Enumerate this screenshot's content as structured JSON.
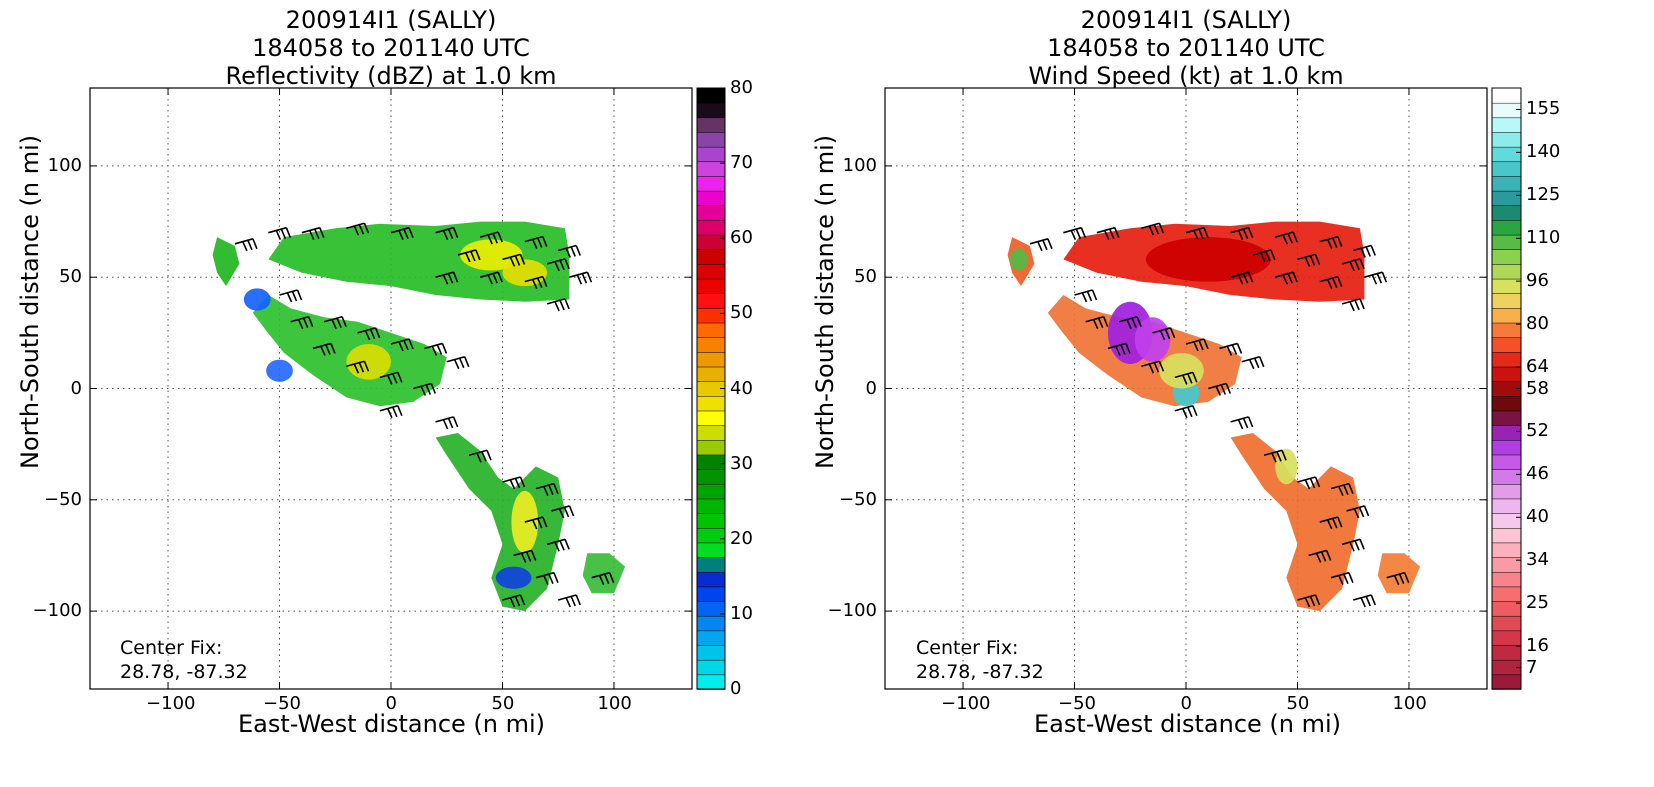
{
  "panels": [
    {
      "title_line1": "200914I1 (SALLY)",
      "title_line2": "184058 to 201140 UTC",
      "title_line3": "Reflectivity (dBZ) at 1.0 km",
      "center_fix_label": "Center Fix:",
      "center_fix_value": "28.78, -87.32"
    },
    {
      "title_line1": "200914I1 (SALLY)",
      "title_line2": "184058 to 201140 UTC",
      "title_line3": "Wind Speed (kt) at 1.0 km",
      "center_fix_label": "Center Fix:",
      "center_fix_value": "28.78, -87.32"
    }
  ],
  "chart_data": [
    {
      "type": "heatmap",
      "title": "200914I1 (SALLY) 184058 to 201140 UTC Reflectivity (dBZ) at 1.0 km",
      "xlabel": "East-West distance (n mi)",
      "ylabel": "North-South distance (n mi)",
      "xlim": [
        -135,
        135
      ],
      "ylim": [
        -135,
        135
      ],
      "xticks": [
        "−100",
        "−50",
        "0",
        "50",
        "100"
      ],
      "yticks": [
        "100",
        "50",
        "0",
        "−50",
        "−100"
      ],
      "xtick_values": [
        -100,
        -50,
        0,
        50,
        100
      ],
      "ytick_values": [
        100,
        50,
        0,
        -50,
        -100
      ],
      "grid": true,
      "colorbar_ticks": [
        "80",
        "70",
        "60",
        "50",
        "40",
        "30",
        "20",
        "10",
        "0"
      ],
      "colorbar_tick_values": [
        80,
        70,
        60,
        50,
        40,
        30,
        20,
        10,
        0
      ],
      "colorbar_range": [
        0,
        80
      ],
      "colorbar_colors": [
        "#00eeee",
        "#00d7e6",
        "#00c2ea",
        "#00a6ee",
        "#0088f0",
        "#0066f2",
        "#0044ee",
        "#0a2bd0",
        "#007f80",
        "#00dd22",
        "#00cc11",
        "#00c400",
        "#00b400",
        "#00a400",
        "#009400",
        "#008400",
        "#99cc00",
        "#ccdd00",
        "#ffff00",
        "#f0e000",
        "#e8c800",
        "#e8b000",
        "#f09800",
        "#f58200",
        "#ff6a00",
        "#ff3000",
        "#ff1010",
        "#ee0000",
        "#dd0000",
        "#cc0000",
        "#cc0033",
        "#dd0066",
        "#e6009a",
        "#f000cc",
        "#ee22ee",
        "#cc44dd",
        "#aa44cc",
        "#8844aa",
        "#663366",
        "#1a0a1a",
        "#000000"
      ]
    },
    {
      "type": "heatmap",
      "title": "200914I1 (SALLY) 184058 to 201140 UTC Wind Speed (kt) at 1.0 km",
      "xlabel": "East-West distance (n mi)",
      "ylabel": "North-South distance (n mi)",
      "xlim": [
        -135,
        135
      ],
      "ylim": [
        -135,
        135
      ],
      "xticks": [
        "−100",
        "−50",
        "0",
        "50",
        "100"
      ],
      "yticks": [
        "100",
        "50",
        "0",
        "−50",
        "−100"
      ],
      "xtick_values": [
        -100,
        -50,
        0,
        50,
        100
      ],
      "ytick_values": [
        100,
        50,
        0,
        -50,
        -100
      ],
      "grid": true,
      "colorbar_ticks": [
        "155",
        "140",
        "125",
        "110",
        "96",
        "80",
        "64",
        "58",
        "52",
        "46",
        "40",
        "34",
        "25",
        "16",
        "7"
      ],
      "colorbar_tick_fracs": [
        0.0357,
        0.1071,
        0.1786,
        0.25,
        0.3214,
        0.3929,
        0.4643,
        0.5,
        0.5714,
        0.6429,
        0.7143,
        0.7857,
        0.8571,
        0.9286,
        0.9643
      ],
      "colorbar_colors": [
        "#9b1a3a",
        "#b0243e",
        "#c02a40",
        "#d4364a",
        "#e04a52",
        "#ec5c60",
        "#f56e70",
        "#f7848a",
        "#f99aa4",
        "#fbb0bc",
        "#fcc4d4",
        "#f6c8ec",
        "#eeb6ee",
        "#e29ce8",
        "#d47ae6",
        "#c45ae6",
        "#b03ee0",
        "#9a22b4",
        "#7a1244",
        "#6e0a0a",
        "#a00c0c",
        "#cc1111",
        "#e62a1a",
        "#f4502a",
        "#f87a3a",
        "#f8b04a",
        "#f0d060",
        "#d8e060",
        "#b0d858",
        "#8cd050",
        "#58bc44",
        "#2aa640",
        "#1a8a70",
        "#2a9a9c",
        "#3ab2b6",
        "#48c6ca",
        "#60dada",
        "#8cecec",
        "#b8f8f8",
        "#e8fcfc",
        "#ffffff"
      ]
    }
  ]
}
